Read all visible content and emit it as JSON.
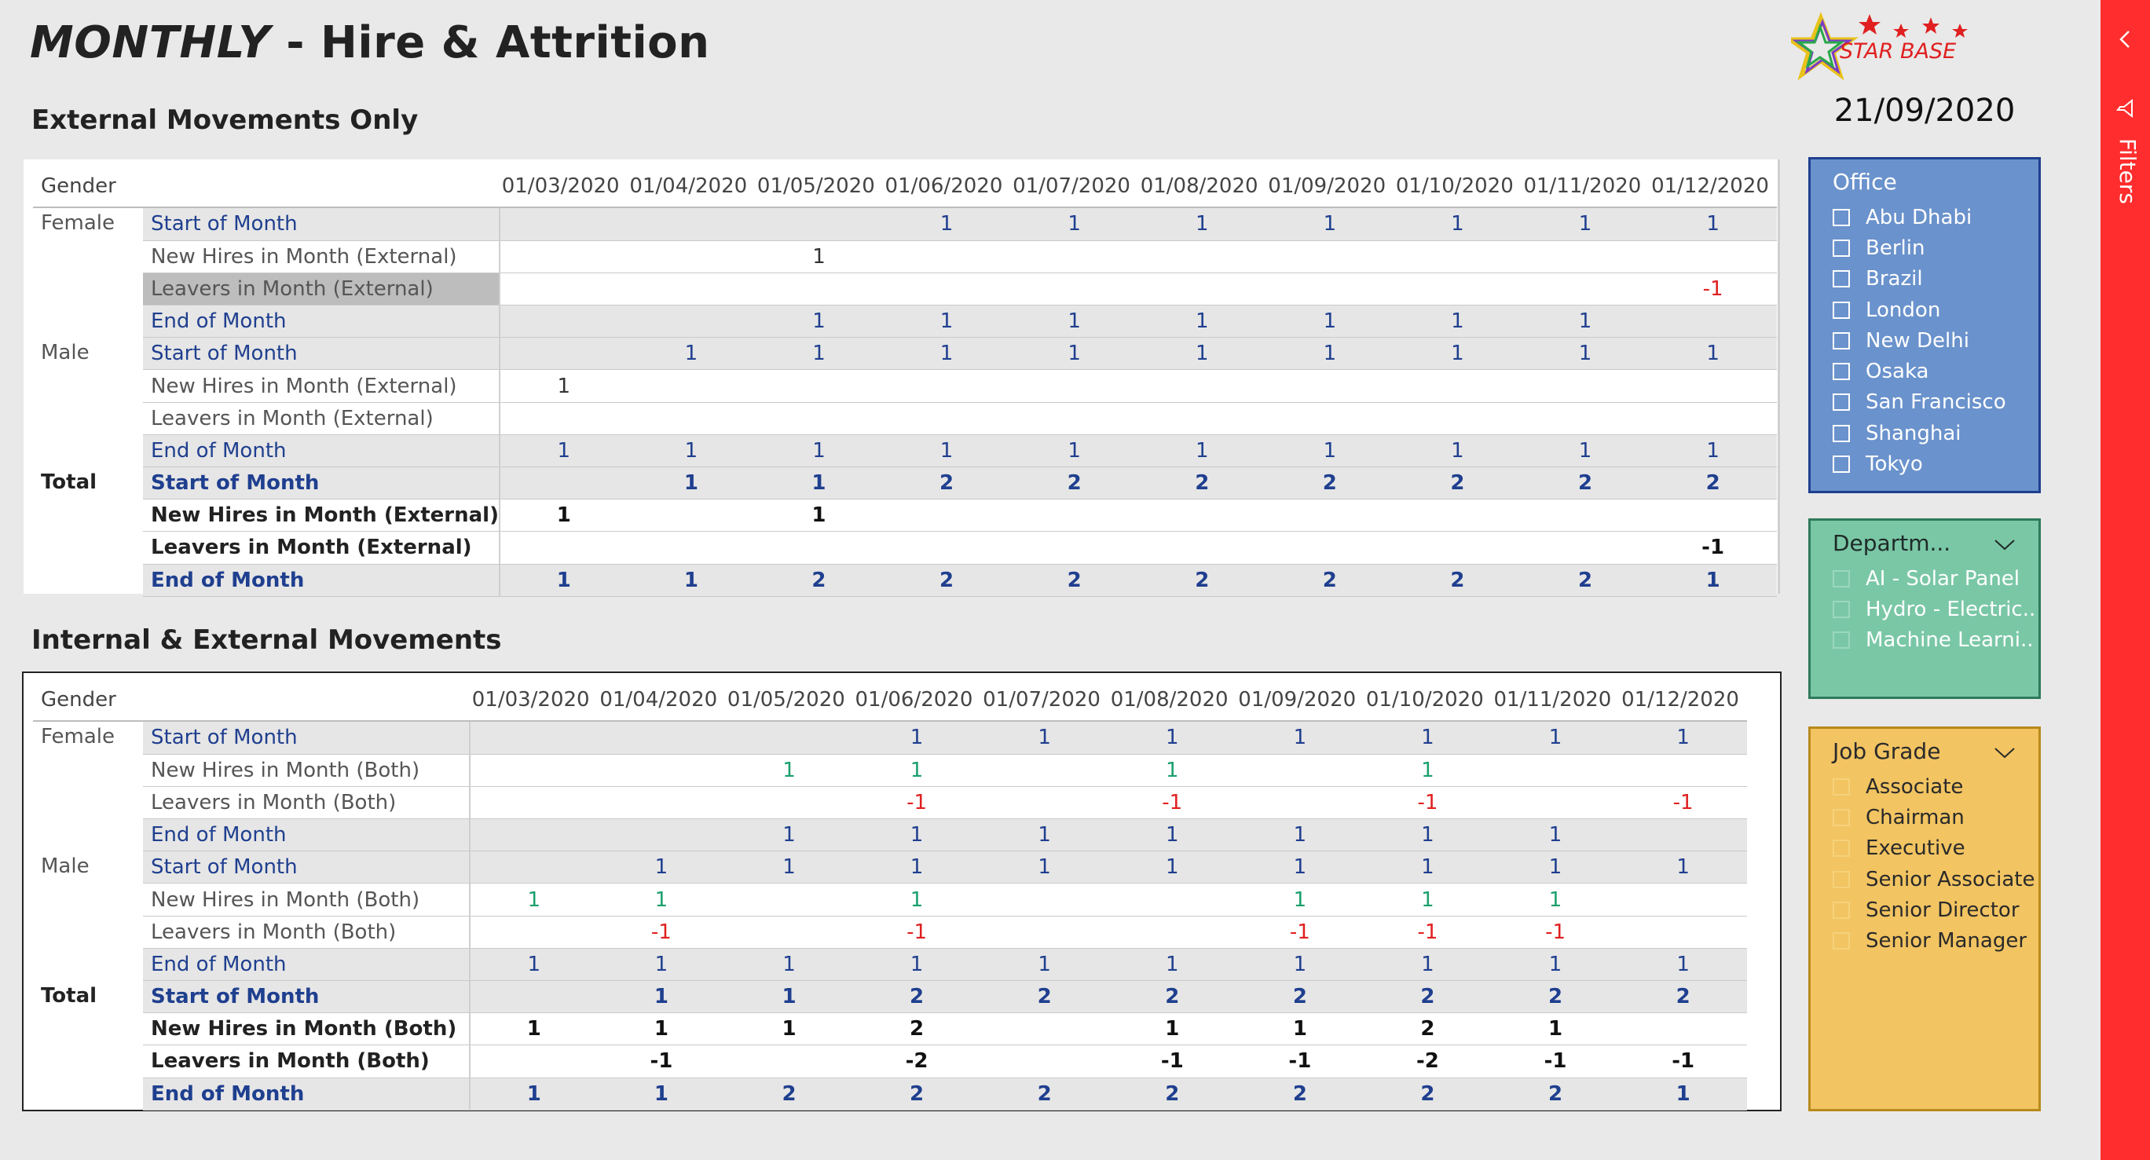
{
  "header": {
    "title_part1": "MONTHLY",
    "title_part2": " - Hire & Attrition",
    "date": "21/09/2020",
    "logo_text": "STAR BASE"
  },
  "sections": {
    "external_title": "External Movements Only",
    "internal_title": "Internal & External Movements"
  },
  "matrix_external": {
    "gender_header": "Gender",
    "columns": [
      "01/03/2020",
      "01/04/2020",
      "01/05/2020",
      "01/06/2020",
      "01/07/2020",
      "01/08/2020",
      "01/09/2020",
      "01/10/2020",
      "01/11/2020",
      "01/12/2020"
    ],
    "rows": [
      {
        "gender": "Female",
        "measure": "Start of Month",
        "kind": "som",
        "values": [
          "",
          "",
          "",
          "1",
          "1",
          "1",
          "1",
          "1",
          "1",
          "1"
        ]
      },
      {
        "gender": "",
        "measure": "New Hires in Month (External)",
        "kind": "nh",
        "values": [
          "",
          "",
          "1",
          "",
          "",
          "",
          "",
          "",
          "",
          ""
        ]
      },
      {
        "gender": "",
        "measure": "Leavers in Month (External)",
        "kind": "lv",
        "selected": true,
        "values": [
          "",
          "",
          "",
          "",
          "",
          "",
          "",
          "",
          "",
          "-1"
        ]
      },
      {
        "gender": "",
        "measure": "End of Month",
        "kind": "eom",
        "values": [
          "",
          "",
          "1",
          "1",
          "1",
          "1",
          "1",
          "1",
          "1",
          ""
        ]
      },
      {
        "gender": "Male",
        "measure": "Start of Month",
        "kind": "som",
        "values": [
          "",
          "1",
          "1",
          "1",
          "1",
          "1",
          "1",
          "1",
          "1",
          "1"
        ]
      },
      {
        "gender": "",
        "measure": "New Hires in Month (External)",
        "kind": "nh",
        "values": [
          "1",
          "",
          "",
          "",
          "",
          "",
          "",
          "",
          "",
          ""
        ]
      },
      {
        "gender": "",
        "measure": "Leavers in Month (External)",
        "kind": "lv",
        "values": [
          "",
          "",
          "",
          "",
          "",
          "",
          "",
          "",
          "",
          ""
        ]
      },
      {
        "gender": "",
        "measure": "End of Month",
        "kind": "eom",
        "values": [
          "1",
          "1",
          "1",
          "1",
          "1",
          "1",
          "1",
          "1",
          "1",
          "1"
        ]
      },
      {
        "gender": "Total",
        "measure": "Start of Month",
        "kind": "som",
        "total": true,
        "values": [
          "",
          "1",
          "1",
          "2",
          "2",
          "2",
          "2",
          "2",
          "2",
          "2"
        ]
      },
      {
        "gender": "",
        "measure": "New Hires in Month (External)",
        "kind": "nh",
        "total": true,
        "values": [
          "1",
          "",
          "1",
          "",
          "",
          "",
          "",
          "",
          "",
          ""
        ]
      },
      {
        "gender": "",
        "measure": "Leavers in Month (External)",
        "kind": "lv",
        "total": true,
        "values": [
          "",
          "",
          "",
          "",
          "",
          "",
          "",
          "",
          "",
          "-1"
        ]
      },
      {
        "gender": "",
        "measure": "End of Month",
        "kind": "eom",
        "total": true,
        "values": [
          "1",
          "1",
          "2",
          "2",
          "2",
          "2",
          "2",
          "2",
          "2",
          "1"
        ]
      }
    ]
  },
  "matrix_internal": {
    "gender_header": "Gender",
    "columns": [
      "01/03/2020",
      "01/04/2020",
      "01/05/2020",
      "01/06/2020",
      "01/07/2020",
      "01/08/2020",
      "01/09/2020",
      "01/10/2020",
      "01/11/2020",
      "01/12/2020"
    ],
    "rows": [
      {
        "gender": "Female",
        "measure": "Start of Month",
        "kind": "som",
        "values": [
          "",
          "",
          "",
          "1",
          "1",
          "1",
          "1",
          "1",
          "1",
          "1"
        ]
      },
      {
        "gender": "",
        "measure": "New Hires in Month (Both)",
        "kind": "nh",
        "values": [
          "",
          "",
          "1",
          "1",
          "",
          "1",
          "",
          "1",
          "",
          ""
        ]
      },
      {
        "gender": "",
        "measure": "Leavers in Month (Both)",
        "kind": "lv",
        "values": [
          "",
          "",
          "",
          "-1",
          "",
          "-1",
          "",
          "-1",
          "",
          "-1"
        ]
      },
      {
        "gender": "",
        "measure": "End of Month",
        "kind": "eom",
        "values": [
          "",
          "",
          "1",
          "1",
          "1",
          "1",
          "1",
          "1",
          "1",
          ""
        ]
      },
      {
        "gender": "Male",
        "measure": "Start of Month",
        "kind": "som",
        "values": [
          "",
          "1",
          "1",
          "1",
          "1",
          "1",
          "1",
          "1",
          "1",
          "1"
        ]
      },
      {
        "gender": "",
        "measure": "New Hires in Month (Both)",
        "kind": "nh",
        "values": [
          "1",
          "1",
          "",
          "1",
          "",
          "",
          "1",
          "1",
          "1",
          ""
        ]
      },
      {
        "gender": "",
        "measure": "Leavers in Month (Both)",
        "kind": "lv",
        "values": [
          "",
          "-1",
          "",
          "-1",
          "",
          "",
          "-1",
          "-1",
          "-1",
          ""
        ]
      },
      {
        "gender": "",
        "measure": "End of Month",
        "kind": "eom",
        "values": [
          "1",
          "1",
          "1",
          "1",
          "1",
          "1",
          "1",
          "1",
          "1",
          "1"
        ]
      },
      {
        "gender": "Total",
        "measure": "Start of Month",
        "kind": "som",
        "total": true,
        "values": [
          "",
          "1",
          "1",
          "2",
          "2",
          "2",
          "2",
          "2",
          "2",
          "2"
        ]
      },
      {
        "gender": "",
        "measure": "New Hires in Month (Both)",
        "kind": "nh",
        "total": true,
        "values": [
          "1",
          "1",
          "1",
          "2",
          "",
          "1",
          "1",
          "2",
          "1",
          ""
        ]
      },
      {
        "gender": "",
        "measure": "Leavers in Month (Both)",
        "kind": "lv",
        "total": true,
        "values": [
          "",
          "-1",
          "",
          "-2",
          "",
          "-1",
          "-1",
          "-2",
          "-1",
          "-1"
        ]
      },
      {
        "gender": "",
        "measure": "End of Month",
        "kind": "eom",
        "total": true,
        "values": [
          "1",
          "1",
          "2",
          "2",
          "2",
          "2",
          "2",
          "2",
          "2",
          "1"
        ]
      }
    ]
  },
  "slicers": {
    "office": {
      "title": "Office",
      "items": [
        "Abu Dhabi",
        "Berlin",
        "Brazil",
        "London",
        "New Delhi",
        "Osaka",
        "San Francisco",
        "Shanghai",
        "Tokyo"
      ]
    },
    "department": {
      "title": "Departm...",
      "items": [
        "AI - Solar Panel",
        "Hydro - Electric...",
        "Machine Learni..."
      ]
    },
    "job_grade": {
      "title": "Job Grade",
      "items": [
        "Associate",
        "Chairman",
        "Executive",
        "Senior Associate",
        "Senior Director",
        "Senior Manager"
      ]
    }
  },
  "filters_pane": {
    "label": "Filters"
  },
  "colors": {
    "accent_blue": "#1f3f8f",
    "positive": "#1aa06d",
    "negative": "#e02020",
    "office_slicer": "#6a92cc",
    "department_slicer": "#7ac7a6",
    "job_grade_slicer": "#f2c462",
    "filter_bar": "#ff2d2d"
  }
}
